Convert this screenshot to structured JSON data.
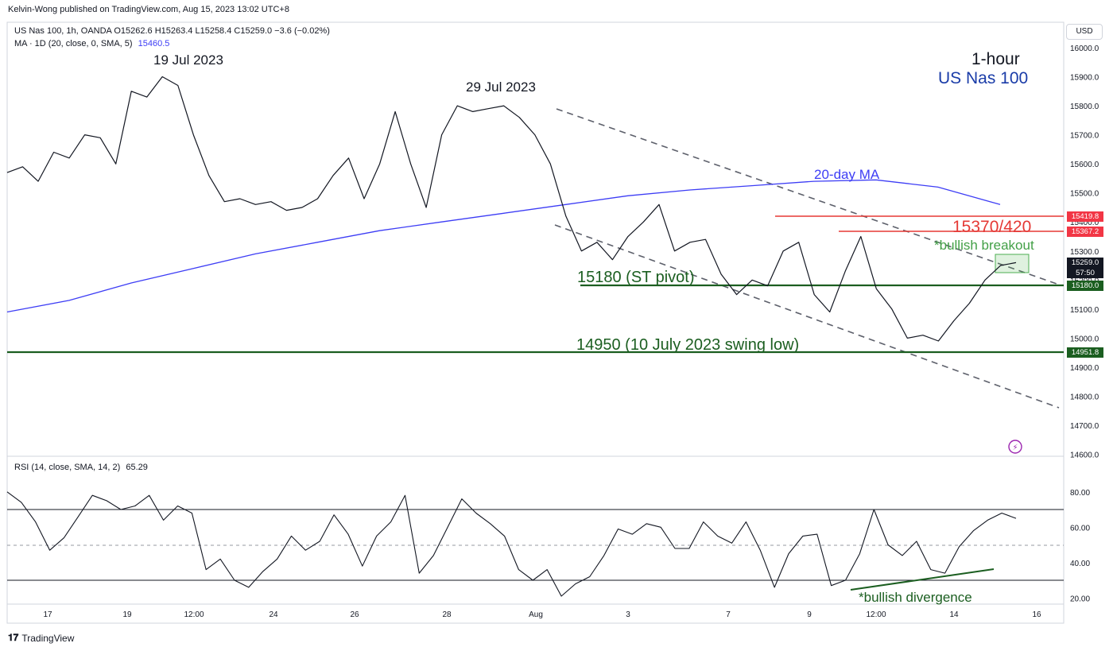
{
  "header": {
    "published": "Kelvin-Wong published on TradingView.com, Aug 15, 2023 13:02 UTC+8",
    "symbol_line": "US Nas 100, 1h, OANDA  O15262.6  H15263.4  L15258.4  C15259.0  −3.6 (−0.02%)",
    "ma_label": "MA · 1D (20, close, 0, SMA, 5)",
    "ma_value": "15460.5",
    "currency": "USD"
  },
  "title": {
    "timeframe": "1-hour",
    "instrument": "US Nas 100"
  },
  "annotations": {
    "peak1": "19 Jul 2023",
    "peak2": "29 Jul 2023",
    "ma_label": "20-day MA",
    "resistance": "15370/420",
    "breakout": "*bullish breakout",
    "pivot": "15180 (ST pivot)",
    "swing_low": "14950 (10 July 2023 swing low)",
    "divergence": "*bullish divergence"
  },
  "price_axis": {
    "ticks": [
      "16000.0",
      "15900.0",
      "15800.0",
      "15700.0",
      "15600.0",
      "15500.0",
      "15400.0",
      "15300.0",
      "15200.0",
      "15100.0",
      "15000.0",
      "14900.0",
      "14800.0",
      "14700.0",
      "14600.0"
    ],
    "badges": [
      {
        "label": "15419.8",
        "color": "#f23645"
      },
      {
        "label": "15367.2",
        "color": "#f23645"
      },
      {
        "label": "15259.0",
        "color": "#131722"
      },
      {
        "label": "57:50",
        "color": "#131722"
      },
      {
        "label": "15180.0",
        "color": "#1b5e20"
      },
      {
        "label": "14951.8",
        "color": "#1b5e20"
      }
    ]
  },
  "rsi": {
    "label": "RSI (14, close, SMA, 14, 2)",
    "value": "65.29",
    "ticks": [
      "80.00",
      "60.00",
      "40.00",
      "20.00"
    ]
  },
  "time_axis": {
    "ticks": [
      "17",
      "19",
      "12:00",
      "24",
      "26",
      "28",
      "Aug",
      "3",
      "7",
      "9",
      "12:00",
      "14",
      "16"
    ]
  },
  "footer": {
    "brand": "TradingView"
  },
  "chart_data": [
    {
      "type": "line",
      "title": "US Nas 100, 1h, OANDA",
      "ylabel": "USD",
      "ylim": [
        14560,
        16020
      ],
      "x_ticks": [
        "17",
        "19",
        "12:00",
        "24",
        "26",
        "28",
        "Aug",
        "3",
        "7",
        "9",
        "12:00",
        "14",
        "16"
      ],
      "series": [
        {
          "name": "US Nas 100",
          "values": [
            15570,
            15590,
            15540,
            15640,
            15620,
            15700,
            15690,
            15600,
            15850,
            15830,
            15900,
            15870,
            15700,
            15560,
            15470,
            15480,
            15460,
            15470,
            15440,
            15450,
            15480,
            15560,
            15620,
            15480,
            15600,
            15780,
            15600,
            15450,
            15700,
            15800,
            15780,
            15790,
            15800,
            15760,
            15700,
            15600,
            15420,
            15300,
            15330,
            15270,
            15350,
            15400,
            15460,
            15300,
            15330,
            15340,
            15220,
            15150,
            15200,
            15180,
            15300,
            15330,
            15150,
            15090,
            15230,
            15350,
            15170,
            15100,
            15000,
            15010,
            14990,
            15060,
            15120,
            15200,
            15250,
            15260
          ]
        },
        {
          "name": "20-day MA",
          "values": [
            15090,
            15130,
            15190,
            15240,
            15290,
            15330,
            15370,
            15400,
            15430,
            15460,
            15490,
            15510,
            15525,
            15540,
            15545,
            15520,
            15460
          ]
        }
      ],
      "horizontal_levels": [
        15419.8,
        15367.2,
        15180.0,
        14951.8
      ]
    },
    {
      "type": "line",
      "title": "RSI (14, close, SMA, 14, 2)",
      "ylim": [
        15,
        90
      ],
      "guide_levels": [
        70,
        50,
        30
      ],
      "series": [
        {
          "name": "RSI",
          "values": [
            80,
            74,
            63,
            47,
            54,
            66,
            78,
            75,
            70,
            72,
            78,
            64,
            72,
            68,
            36,
            42,
            30,
            26,
            35,
            42,
            55,
            47,
            52,
            67,
            56,
            38,
            55,
            63,
            78,
            34,
            44,
            60,
            76,
            68,
            62,
            55,
            36,
            30,
            36,
            21,
            28,
            32,
            44,
            59,
            56,
            62,
            60,
            48,
            48,
            63,
            55,
            51,
            63,
            47,
            26,
            45,
            55,
            56,
            27,
            30,
            45,
            70,
            50,
            44,
            52,
            36,
            34,
            49,
            58,
            64,
            68,
            65
          ]
        }
      ]
    }
  ]
}
